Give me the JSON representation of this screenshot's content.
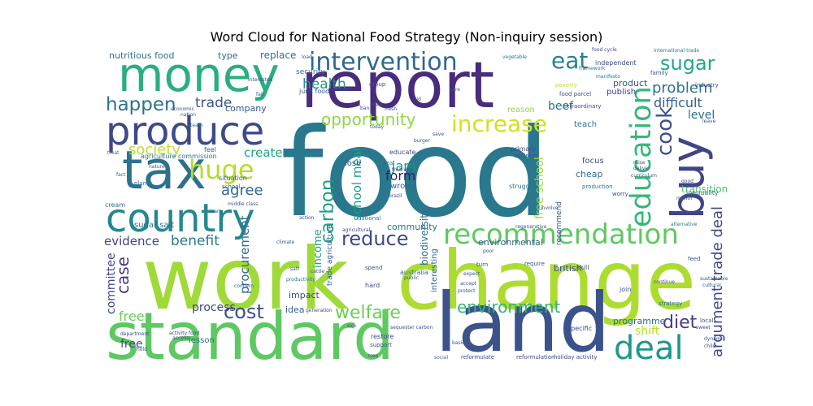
{
  "title": "Word Cloud for National Food Strategy (Non-inquiry session)",
  "words": [
    {
      "text": "food",
      "color": "#2a788e"
    },
    {
      "text": "work",
      "color": "#a0da39"
    },
    {
      "text": "change",
      "color": "#addc30"
    },
    {
      "text": "report",
      "color": "#472d7b"
    },
    {
      "text": "money",
      "color": "#29af7f"
    },
    {
      "text": "standard",
      "color": "#5ec962"
    },
    {
      "text": "land",
      "color": "#3b528b"
    },
    {
      "text": "tax",
      "color": "#2c728e"
    },
    {
      "text": "produce",
      "color": "#3e4989"
    },
    {
      "text": "country",
      "color": "#23888e"
    },
    {
      "text": "buy",
      "color": "#414487"
    },
    {
      "text": "recommendation",
      "color": "#5ec962"
    },
    {
      "text": "education",
      "color": "#35b779"
    },
    {
      "text": "deal",
      "color": "#1f988b"
    },
    {
      "text": "intervention",
      "color": "#31688e"
    },
    {
      "text": "huge",
      "color": "#b5de2b"
    },
    {
      "text": "increase",
      "color": "#d2e21b"
    },
    {
      "text": "eat",
      "color": "#26828e"
    },
    {
      "text": "sugar",
      "color": "#22a884"
    },
    {
      "text": "happen",
      "color": "#2c728e"
    },
    {
      "text": "cook",
      "color": "#3b528b"
    },
    {
      "text": "carbon",
      "color": "#1fa187"
    },
    {
      "text": "reduce",
      "color": "#3e4989"
    },
    {
      "text": "cost",
      "color": "#3b528b"
    },
    {
      "text": "welfare",
      "color": "#6ccd5a"
    },
    {
      "text": "environment",
      "color": "#35b779"
    },
    {
      "text": "opportunity",
      "color": "#90d743"
    },
    {
      "text": "problem",
      "color": "#2c728e"
    },
    {
      "text": "society",
      "color": "#c2df23"
    },
    {
      "text": "agree",
      "color": "#31688e"
    },
    {
      "text": "case",
      "color": "#443983"
    },
    {
      "text": "diet",
      "color": "#433e85"
    },
    {
      "text": "argument trade deal",
      "color": "#3e4989"
    },
    {
      "text": "free",
      "color": "#6ccd5a"
    },
    {
      "text": "school meal",
      "color": "#1e9c89"
    },
    {
      "text": "form",
      "color": "#2d1e73"
    },
    {
      "text": "jam",
      "color": "#21918c"
    },
    {
      "text": "free school",
      "color": "#a0da39"
    },
    {
      "text": "benefit",
      "color": "#2a788e"
    },
    {
      "text": "evidence",
      "color": "#414487"
    },
    {
      "text": "trade",
      "color": "#3b528b"
    },
    {
      "text": "health",
      "color": "#21918c"
    },
    {
      "text": "difficult",
      "color": "#355f8d"
    },
    {
      "text": "beef",
      "color": "#2c728e"
    },
    {
      "text": "level",
      "color": "#2d708e"
    },
    {
      "text": "create",
      "color": "#1fa187"
    },
    {
      "text": "procurement",
      "color": "#31688e"
    },
    {
      "text": "income",
      "color": "#1e9c89"
    },
    {
      "text": "committee",
      "color": "#3e4989"
    },
    {
      "text": "process",
      "color": "#414487"
    },
    {
      "text": "shift",
      "color": "#b5de2b"
    },
    {
      "text": "biodiversity",
      "color": "#2d708e"
    },
    {
      "text": "transition",
      "color": "#52c569"
    },
    {
      "text": "free",
      "color": "#3b528b"
    },
    {
      "text": "nutritious food",
      "color": "#2c728e"
    },
    {
      "text": "replace",
      "color": "#2c728e"
    },
    {
      "text": "type",
      "color": "#31688e"
    },
    {
      "text": "company",
      "color": "#38588c"
    },
    {
      "text": "impact",
      "color": "#3e4989"
    },
    {
      "text": "idea",
      "color": "#355f8d"
    },
    {
      "text": "community",
      "color": "#2c728e"
    },
    {
      "text": "environmental",
      "color": "#355f8d"
    },
    {
      "text": "british",
      "color": "#3e4989"
    },
    {
      "text": "programme",
      "color": "#2d708e"
    },
    {
      "text": "cheap",
      "color": "#2d708e"
    },
    {
      "text": "focus",
      "color": "#3e4989"
    },
    {
      "text": "teach",
      "color": "#2c728e"
    },
    {
      "text": "product",
      "color": "#3b528b"
    },
    {
      "text": "publish",
      "color": "#414487"
    },
    {
      "text": "sugar salt",
      "color": "#2c728e"
    },
    {
      "text": "trade agriculture",
      "color": "#355f8d"
    },
    {
      "text": "recommend",
      "color": "#3b528b"
    },
    {
      "text": "interesting",
      "color": "#2c728e"
    },
    {
      "text": "wrong",
      "color": "#31688e"
    },
    {
      "text": "security",
      "color": "#2c728e"
    },
    {
      "text": "junk food",
      "color": "#3b528b"
    },
    {
      "text": "independent",
      "color": "#3e4989"
    },
    {
      "text": "inequality",
      "color": "#2c728e"
    },
    {
      "text": "australia",
      "color": "#2c728e"
    },
    {
      "text": "cream",
      "color": "#2c728e"
    },
    {
      "text": "reason",
      "color": "#90d743"
    },
    {
      "text": "lose",
      "color": "#3b528b"
    },
    {
      "text": "feel",
      "color": "#355f8d"
    },
    {
      "text": "situation",
      "color": "#3b528b"
    },
    {
      "text": "agriculture commission",
      "color": "#2c728e"
    },
    {
      "text": "planet",
      "color": "#2c728e"
    },
    {
      "text": "school",
      "color": "#2c728e"
    },
    {
      "text": "educate",
      "color": "#3e4989"
    },
    {
      "text": "real",
      "color": "#2c728e"
    },
    {
      "text": "primary",
      "color": "#3e4989"
    },
    {
      "text": "decision",
      "color": "#3b528b"
    },
    {
      "text": "struggle",
      "color": "#2c728e"
    },
    {
      "text": "fat",
      "color": "#2c728e"
    },
    {
      "text": "national",
      "color": "#2c728e"
    },
    {
      "text": "lesson",
      "color": "#2c728e"
    },
    {
      "text": "restore",
      "color": "#3e4989"
    },
    {
      "text": "specific",
      "color": "#3e4989"
    },
    {
      "text": "join",
      "color": "#3b528b"
    },
    {
      "text": "strategy",
      "color": "#2c728e"
    },
    {
      "text": "local",
      "color": "#3b528b"
    },
    {
      "text": "skill",
      "color": "#3b528b"
    },
    {
      "text": "require",
      "color": "#3b528b"
    },
    {
      "text": "feed",
      "color": "#3b528b"
    },
    {
      "text": "alternative",
      "color": "#2c728e"
    },
    {
      "text": "month",
      "color": "#2c728e"
    },
    {
      "text": "worry",
      "color": "#3b528b"
    },
    {
      "text": "production",
      "color": "#2c728e"
    },
    {
      "text": "industry",
      "color": "#3e4989"
    },
    {
      "text": "family",
      "color": "#3b528b"
    },
    {
      "text": "leave",
      "color": "#3e4989"
    },
    {
      "text": "international trade",
      "color": "#2c728e"
    },
    {
      "text": "food cycle",
      "color": "#3e4989"
    },
    {
      "text": "framework",
      "color": "#2c728e"
    },
    {
      "text": "manifesto",
      "color": "#2c728e"
    },
    {
      "text": "poverty",
      "color": "#b5de2b"
    },
    {
      "text": "food parcel",
      "color": "#3b528b"
    },
    {
      "text": "extraordinary",
      "color": "#3e4989"
    },
    {
      "text": "vegetable",
      "color": "#2c728e"
    },
    {
      "text": "group",
      "color": "#3b528b"
    },
    {
      "text": "person",
      "color": "#3e4989"
    },
    {
      "text": "nation",
      "color": "#3b528b"
    },
    {
      "text": "team",
      "color": "#2c728e"
    },
    {
      "text": "treat",
      "color": "#2c728e"
    },
    {
      "text": "fact",
      "color": "#3b528b"
    },
    {
      "text": "kid",
      "color": "#3b528b"
    },
    {
      "text": "care",
      "color": "#3b528b"
    },
    {
      "text": "ban",
      "color": "#3e4989"
    },
    {
      "text": "cover",
      "color": "#3b528b"
    },
    {
      "text": "fresh",
      "color": "#3b528b"
    },
    {
      "text": "today",
      "color": "#3b528b"
    },
    {
      "text": "save",
      "color": "#3b528b"
    },
    {
      "text": "fruit veg",
      "color": "#3e4989"
    },
    {
      "text": "burger",
      "color": "#3b528b"
    },
    {
      "text": "brazil",
      "color": "#3b528b"
    },
    {
      "text": "action",
      "color": "#3b528b"
    },
    {
      "text": "agricultural",
      "color": "#3e4989"
    },
    {
      "text": "cattle",
      "color": "#3b528b"
    },
    {
      "text": "generation",
      "color": "#3b528b"
    },
    {
      "text": "sick",
      "color": "#3b528b"
    },
    {
      "text": "productivity",
      "color": "#2c728e"
    },
    {
      "text": "concern",
      "color": "#3b528b"
    },
    {
      "text": "salt",
      "color": "#3b528b"
    },
    {
      "text": "hold",
      "color": "#3b528b"
    },
    {
      "text": "access",
      "color": "#3e4989"
    },
    {
      "text": "department",
      "color": "#3e4989"
    },
    {
      "text": "activity food",
      "color": "#3e4989"
    },
    {
      "text": "social",
      "color": "#2c728e"
    },
    {
      "text": "reformulate",
      "color": "#3e4989"
    },
    {
      "text": "reformulation",
      "color": "#3e4989"
    },
    {
      "text": "holiday activity",
      "color": "#3e4989"
    },
    {
      "text": "tree",
      "color": "#3b528b"
    },
    {
      "text": "support",
      "color": "#3b528b"
    },
    {
      "text": "sequester carbon",
      "color": "#3b528b"
    },
    {
      "text": "hard",
      "color": "#3b528b"
    },
    {
      "text": "spend",
      "color": "#3b528b"
    },
    {
      "text": "public",
      "color": "#3b528b"
    },
    {
      "text": "turn",
      "color": "#3b528b"
    },
    {
      "text": "expect",
      "color": "#3b528b"
    },
    {
      "text": "accept",
      "color": "#3b528b"
    },
    {
      "text": "protect",
      "color": "#3b528b"
    },
    {
      "text": "basic",
      "color": "#3b528b"
    },
    {
      "text": "poor",
      "color": "#3b528b"
    },
    {
      "text": "regenerative",
      "color": "#3b528b"
    },
    {
      "text": "continue",
      "color": "#3b528b"
    },
    {
      "text": "sustainable",
      "color": "#3b528b"
    },
    {
      "text": "cultural",
      "color": "#3b528b"
    },
    {
      "text": "sweet",
      "color": "#3e4989"
    },
    {
      "text": "dynamic",
      "color": "#3b528b"
    },
    {
      "text": "child",
      "color": "#3b528b"
    },
    {
      "text": "involve",
      "color": "#3b528b"
    },
    {
      "text": "deliver",
      "color": "#3b528b"
    },
    {
      "text": "curriculum",
      "color": "#3b528b"
    },
    {
      "text": "raise",
      "color": "#3b528b"
    },
    {
      "text": "good",
      "color": "#3b528b"
    },
    {
      "text": "fair",
      "color": "#3b528b"
    },
    {
      "text": "interested",
      "color": "#3b528b"
    },
    {
      "text": "economic",
      "color": "#3b528b"
    },
    {
      "text": "climate",
      "color": "#3b528b"
    },
    {
      "text": "middle class",
      "color": "#3b528b"
    },
    {
      "text": "learn",
      "color": "#3b528b"
    },
    {
      "text": "nature",
      "color": "#3b528b"
    },
    {
      "text": "load",
      "color": "#3b528b"
    }
  ]
}
